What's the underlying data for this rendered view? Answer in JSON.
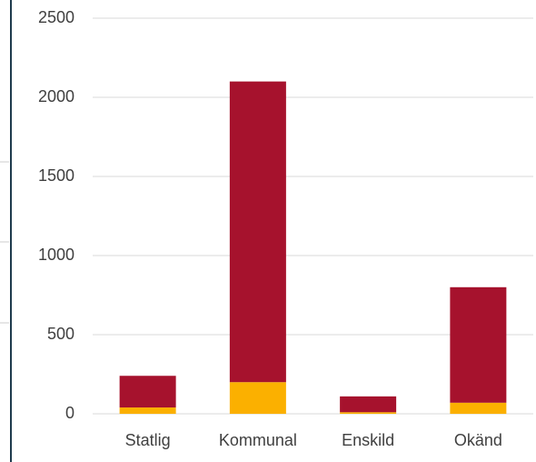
{
  "chart_data": {
    "type": "stacked_bar",
    "categories": [
      "Statlig",
      "Kommunal",
      "Enskild",
      "Okänd"
    ],
    "series": [
      {
        "color": "#fbb000",
        "values": [
          40,
          200,
          10,
          70
        ]
      },
      {
        "color": "#a6122d",
        "values": [
          200,
          1900,
          100,
          730
        ]
      }
    ],
    "ylim": [
      0,
      2500
    ],
    "yticks": [
      0,
      500,
      1000,
      1500,
      2000,
      2500
    ],
    "grid": true
  }
}
